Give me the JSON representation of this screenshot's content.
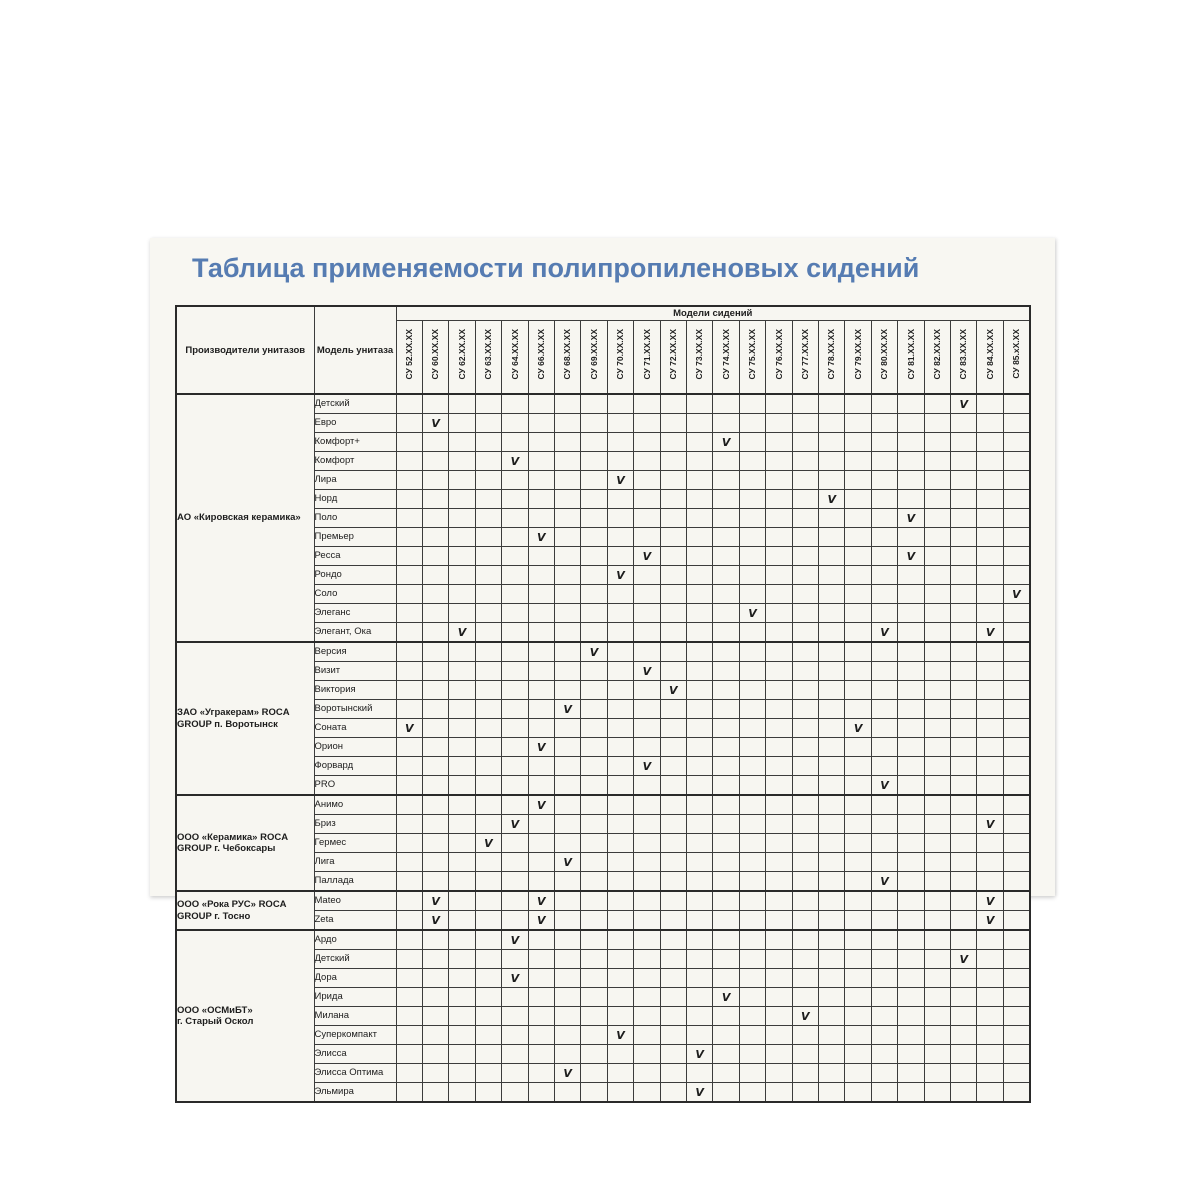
{
  "title": "Таблица применяемости полипропиленовых сидений",
  "colors": {
    "title_blue": "#567cb2",
    "scan_background": "#f8f7f2",
    "grid_line": "#3c3c3c",
    "check_color": "#1d1d1d"
  },
  "table": {
    "manufacturers_header": "Производители унитазов",
    "model_header": "Модель унитаза",
    "col_header_group": "Модели сидений",
    "check_symbol": "V",
    "seat_models": [
      "СУ 52.XX.XX",
      "СУ 60.XX.XX",
      "СУ 62.XX.XX",
      "СУ 63.XX.XX",
      "СУ 64.XX.XX",
      "СУ 66.XX.XX",
      "СУ 68.XX.XX",
      "СУ 69.XX.XX",
      "СУ 70.XX.XX",
      "СУ 71.XX.XX",
      "СУ 72.XX.XX",
      "СУ 73.XX.XX",
      "СУ 74.XX.XX",
      "СУ 75.XX.XX",
      "СУ 76.XX.XX",
      "СУ 77.XX.XX",
      "СУ 78.XX.XX",
      "СУ 79.XX.XX",
      "СУ 80.XX.XX",
      "СУ 81.XX.XX",
      "СУ 82.XX.XX",
      "СУ 83.XX.XX",
      "СУ 84.XX.XX",
      "СУ 85.xX.XX"
    ],
    "groups": [
      {
        "name": "АО «Кировская керамика»",
        "rows": [
          {
            "model": "Детский",
            "check_cols": [
              21
            ]
          },
          {
            "model": "Евро",
            "check_cols": [
              1
            ]
          },
          {
            "model": "Комфорт+",
            "check_cols": [
              12
            ]
          },
          {
            "model": "Комфорт",
            "check_cols": [
              4
            ]
          },
          {
            "model": "Лира",
            "check_cols": [
              8
            ]
          },
          {
            "model": "Норд",
            "check_cols": [
              16
            ]
          },
          {
            "model": "Поло",
            "check_cols": [
              19
            ]
          },
          {
            "model": "Премьер",
            "check_cols": [
              5
            ]
          },
          {
            "model": "Ресса",
            "check_cols": [
              9,
              19
            ]
          },
          {
            "model": "Рондо",
            "check_cols": [
              8
            ]
          },
          {
            "model": "Соло",
            "check_cols": [
              23
            ]
          },
          {
            "model": "Элеганс",
            "check_cols": [
              13
            ]
          },
          {
            "model": "Элегант, Ока",
            "check_cols": [
              2,
              18,
              22
            ]
          }
        ]
      },
      {
        "name": "ЗАО «Угракерам» ROCA\nGROUP п. Воротынск",
        "rows": [
          {
            "model": "Версия",
            "check_cols": [
              7
            ]
          },
          {
            "model": "Визит",
            "check_cols": [
              9
            ]
          },
          {
            "model": "Виктория",
            "check_cols": [
              10
            ]
          },
          {
            "model": "Воротынский",
            "check_cols": [
              6
            ]
          },
          {
            "model": "Соната",
            "check_cols": [
              0,
              17
            ]
          },
          {
            "model": "Орион",
            "check_cols": [
              5
            ]
          },
          {
            "model": "Форвард",
            "check_cols": [
              9
            ]
          },
          {
            "model": "PRO",
            "check_cols": [
              18
            ]
          }
        ]
      },
      {
        "name": "ООО «Керамика» ROCA\nGROUP г. Чебоксары",
        "rows": [
          {
            "model": "Анимо",
            "check_cols": [
              5
            ]
          },
          {
            "model": "Бриз",
            "check_cols": [
              4,
              22
            ]
          },
          {
            "model": "Гермес",
            "check_cols": [
              3
            ]
          },
          {
            "model": "Лига",
            "check_cols": [
              6
            ]
          },
          {
            "model": "Паллада",
            "check_cols": [
              18
            ]
          }
        ]
      },
      {
        "name": "ООО «Рока РУС» ROCA\nGROUP г. Тосно",
        "rows": [
          {
            "model": "Mateo",
            "check_cols": [
              1,
              5,
              22
            ]
          },
          {
            "model": "Zeta",
            "check_cols": [
              1,
              5,
              22
            ]
          }
        ]
      },
      {
        "name": "ООО «ОСМиБТ»\nг. Старый Оскол",
        "rows": [
          {
            "model": "Ардо",
            "check_cols": [
              4
            ]
          },
          {
            "model": "Детский",
            "check_cols": [
              21
            ]
          },
          {
            "model": "Дора",
            "check_cols": [
              4
            ]
          },
          {
            "model": "Ирида",
            "check_cols": [
              12
            ]
          },
          {
            "model": "Милана",
            "check_cols": [
              15
            ]
          },
          {
            "model": "Суперкомпакт",
            "check_cols": [
              8
            ]
          },
          {
            "model": "Элисса",
            "check_cols": [
              11
            ]
          },
          {
            "model": "Элисса Оптима",
            "check_cols": [
              6
            ]
          },
          {
            "model": "Эльмира",
            "check_cols": [
              11
            ]
          }
        ]
      }
    ]
  }
}
